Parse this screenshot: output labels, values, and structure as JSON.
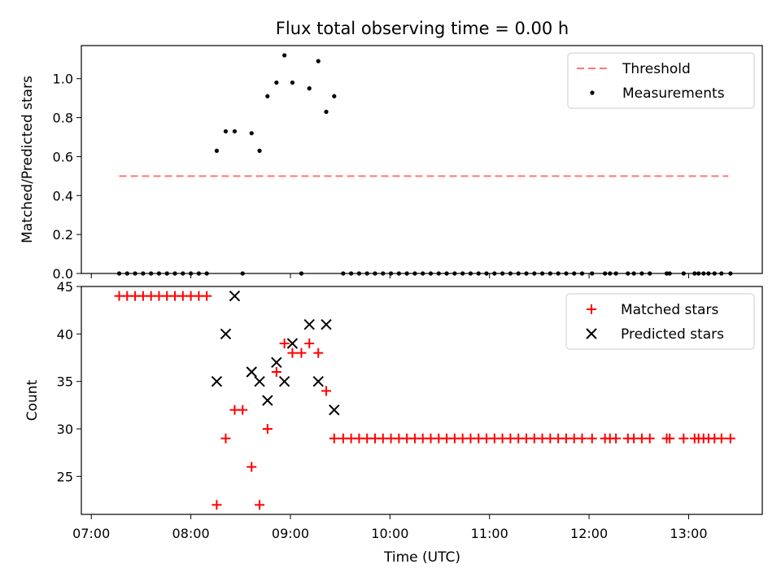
{
  "chart_data": {
    "title": "Flux total observing time = 0.00 h",
    "xlabel": "Time (UTC)",
    "x_ticks": [
      "07:00",
      "08:00",
      "09:00",
      "10:00",
      "11:00",
      "12:00",
      "13:00"
    ],
    "x_tick_hours": [
      7,
      8,
      9,
      10,
      11,
      12,
      13
    ],
    "xlim_hours": [
      6.9,
      13.74
    ],
    "top": {
      "type": "scatter",
      "ylabel": "Matched/Predicted stars",
      "ylim": [
        0,
        1.17
      ],
      "y_ticks": [
        0.0,
        0.2,
        0.4,
        0.6,
        0.8,
        1.0
      ],
      "y_tick_labels": [
        "0.0",
        "0.2",
        "0.4",
        "0.6",
        "0.8",
        "1.0"
      ],
      "threshold": {
        "name": "Threshold",
        "value": 0.5,
        "x_start": 7.28,
        "x_end": 13.4,
        "color": "#ff7777"
      },
      "measurements": {
        "name": "Measurements",
        "color": "#000000",
        "points": [
          [
            7.28,
            0
          ],
          [
            7.36,
            0
          ],
          [
            7.44,
            0
          ],
          [
            7.52,
            0
          ],
          [
            7.6,
            0
          ],
          [
            7.68,
            0
          ],
          [
            7.76,
            0
          ],
          [
            7.84,
            0
          ],
          [
            7.92,
            0
          ],
          [
            8.0,
            0
          ],
          [
            8.08,
            0
          ],
          [
            8.16,
            0
          ],
          [
            8.26,
            0.63
          ],
          [
            8.35,
            0.73
          ],
          [
            8.44,
            0.73
          ],
          [
            8.52,
            0
          ],
          [
            8.61,
            0.72
          ],
          [
            8.69,
            0.63
          ],
          [
            8.77,
            0.91
          ],
          [
            8.86,
            0.98
          ],
          [
            8.94,
            1.12
          ],
          [
            9.02,
            0.98
          ],
          [
            9.11,
            0
          ],
          [
            9.19,
            0.95
          ],
          [
            9.28,
            1.09
          ],
          [
            9.36,
            0.83
          ],
          [
            9.44,
            0.91
          ],
          [
            9.53,
            0
          ],
          [
            9.61,
            0
          ],
          [
            9.69,
            0
          ],
          [
            9.77,
            0
          ],
          [
            9.85,
            0
          ],
          [
            9.93,
            0
          ],
          [
            10.01,
            0
          ],
          [
            10.09,
            0
          ],
          [
            10.17,
            0
          ],
          [
            10.25,
            0
          ],
          [
            10.33,
            0
          ],
          [
            10.41,
            0
          ],
          [
            10.49,
            0
          ],
          [
            10.57,
            0
          ],
          [
            10.65,
            0
          ],
          [
            10.73,
            0
          ],
          [
            10.81,
            0
          ],
          [
            10.89,
            0
          ],
          [
            10.97,
            0
          ],
          [
            11.05,
            0
          ],
          [
            11.13,
            0
          ],
          [
            11.21,
            0
          ],
          [
            11.29,
            0
          ],
          [
            11.37,
            0
          ],
          [
            11.45,
            0
          ],
          [
            11.53,
            0
          ],
          [
            11.61,
            0
          ],
          [
            11.69,
            0
          ],
          [
            11.77,
            0
          ],
          [
            11.85,
            0
          ],
          [
            11.93,
            0
          ],
          [
            12.03,
            0
          ],
          [
            12.16,
            0
          ],
          [
            12.21,
            0
          ],
          [
            12.27,
            0
          ],
          [
            12.39,
            0
          ],
          [
            12.45,
            0
          ],
          [
            12.53,
            0
          ],
          [
            12.61,
            0
          ],
          [
            12.78,
            0
          ],
          [
            12.81,
            0
          ],
          [
            12.95,
            0
          ],
          [
            13.06,
            0
          ],
          [
            13.1,
            0
          ],
          [
            13.15,
            0
          ],
          [
            13.2,
            0
          ],
          [
            13.26,
            0
          ],
          [
            13.33,
            0
          ],
          [
            13.42,
            0
          ]
        ]
      },
      "legend": [
        "Threshold",
        "Measurements"
      ]
    },
    "bottom": {
      "type": "scatter",
      "ylabel": "Count",
      "ylim": [
        21,
        45
      ],
      "y_ticks": [
        25,
        30,
        35,
        40,
        45
      ],
      "y_tick_labels": [
        "25",
        "30",
        "35",
        "40",
        "45"
      ],
      "series": [
        {
          "name": "Matched stars",
          "marker": "plus",
          "color": "#ff0000",
          "points": [
            [
              7.28,
              44
            ],
            [
              7.36,
              44
            ],
            [
              7.44,
              44
            ],
            [
              7.52,
              44
            ],
            [
              7.6,
              44
            ],
            [
              7.68,
              44
            ],
            [
              7.76,
              44
            ],
            [
              7.84,
              44
            ],
            [
              7.92,
              44
            ],
            [
              8.0,
              44
            ],
            [
              8.08,
              44
            ],
            [
              8.16,
              44
            ],
            [
              8.26,
              22
            ],
            [
              8.35,
              29
            ],
            [
              8.44,
              32
            ],
            [
              8.52,
              32
            ],
            [
              8.61,
              26
            ],
            [
              8.69,
              22
            ],
            [
              8.77,
              30
            ],
            [
              8.86,
              36
            ],
            [
              8.94,
              39
            ],
            [
              9.02,
              38
            ],
            [
              9.11,
              38
            ],
            [
              9.19,
              39
            ],
            [
              9.28,
              38
            ],
            [
              9.36,
              34
            ],
            [
              9.44,
              29
            ],
            [
              9.53,
              29
            ],
            [
              9.61,
              29
            ],
            [
              9.69,
              29
            ],
            [
              9.77,
              29
            ],
            [
              9.85,
              29
            ],
            [
              9.93,
              29
            ],
            [
              10.01,
              29
            ],
            [
              10.09,
              29
            ],
            [
              10.17,
              29
            ],
            [
              10.25,
              29
            ],
            [
              10.33,
              29
            ],
            [
              10.41,
              29
            ],
            [
              10.49,
              29
            ],
            [
              10.57,
              29
            ],
            [
              10.65,
              29
            ],
            [
              10.73,
              29
            ],
            [
              10.81,
              29
            ],
            [
              10.89,
              29
            ],
            [
              10.97,
              29
            ],
            [
              11.05,
              29
            ],
            [
              11.13,
              29
            ],
            [
              11.21,
              29
            ],
            [
              11.29,
              29
            ],
            [
              11.37,
              29
            ],
            [
              11.45,
              29
            ],
            [
              11.53,
              29
            ],
            [
              11.61,
              29
            ],
            [
              11.69,
              29
            ],
            [
              11.77,
              29
            ],
            [
              11.85,
              29
            ],
            [
              11.93,
              29
            ],
            [
              12.03,
              29
            ],
            [
              12.16,
              29
            ],
            [
              12.21,
              29
            ],
            [
              12.27,
              29
            ],
            [
              12.39,
              29
            ],
            [
              12.45,
              29
            ],
            [
              12.53,
              29
            ],
            [
              12.61,
              29
            ],
            [
              12.78,
              29
            ],
            [
              12.81,
              29
            ],
            [
              12.95,
              29
            ],
            [
              13.06,
              29
            ],
            [
              13.1,
              29
            ],
            [
              13.15,
              29
            ],
            [
              13.2,
              29
            ],
            [
              13.26,
              29
            ],
            [
              13.33,
              29
            ],
            [
              13.42,
              29
            ]
          ]
        },
        {
          "name": "Predicted stars",
          "marker": "x",
          "color": "#000000",
          "points": [
            [
              8.26,
              35
            ],
            [
              8.35,
              40
            ],
            [
              8.44,
              44
            ],
            [
              8.61,
              36
            ],
            [
              8.69,
              35
            ],
            [
              8.77,
              33
            ],
            [
              8.86,
              37
            ],
            [
              8.94,
              35
            ],
            [
              9.02,
              39
            ],
            [
              9.19,
              41
            ],
            [
              9.28,
              35
            ],
            [
              9.36,
              41
            ],
            [
              9.44,
              32
            ]
          ]
        }
      ],
      "legend": [
        "Matched stars",
        "Predicted stars"
      ]
    }
  }
}
